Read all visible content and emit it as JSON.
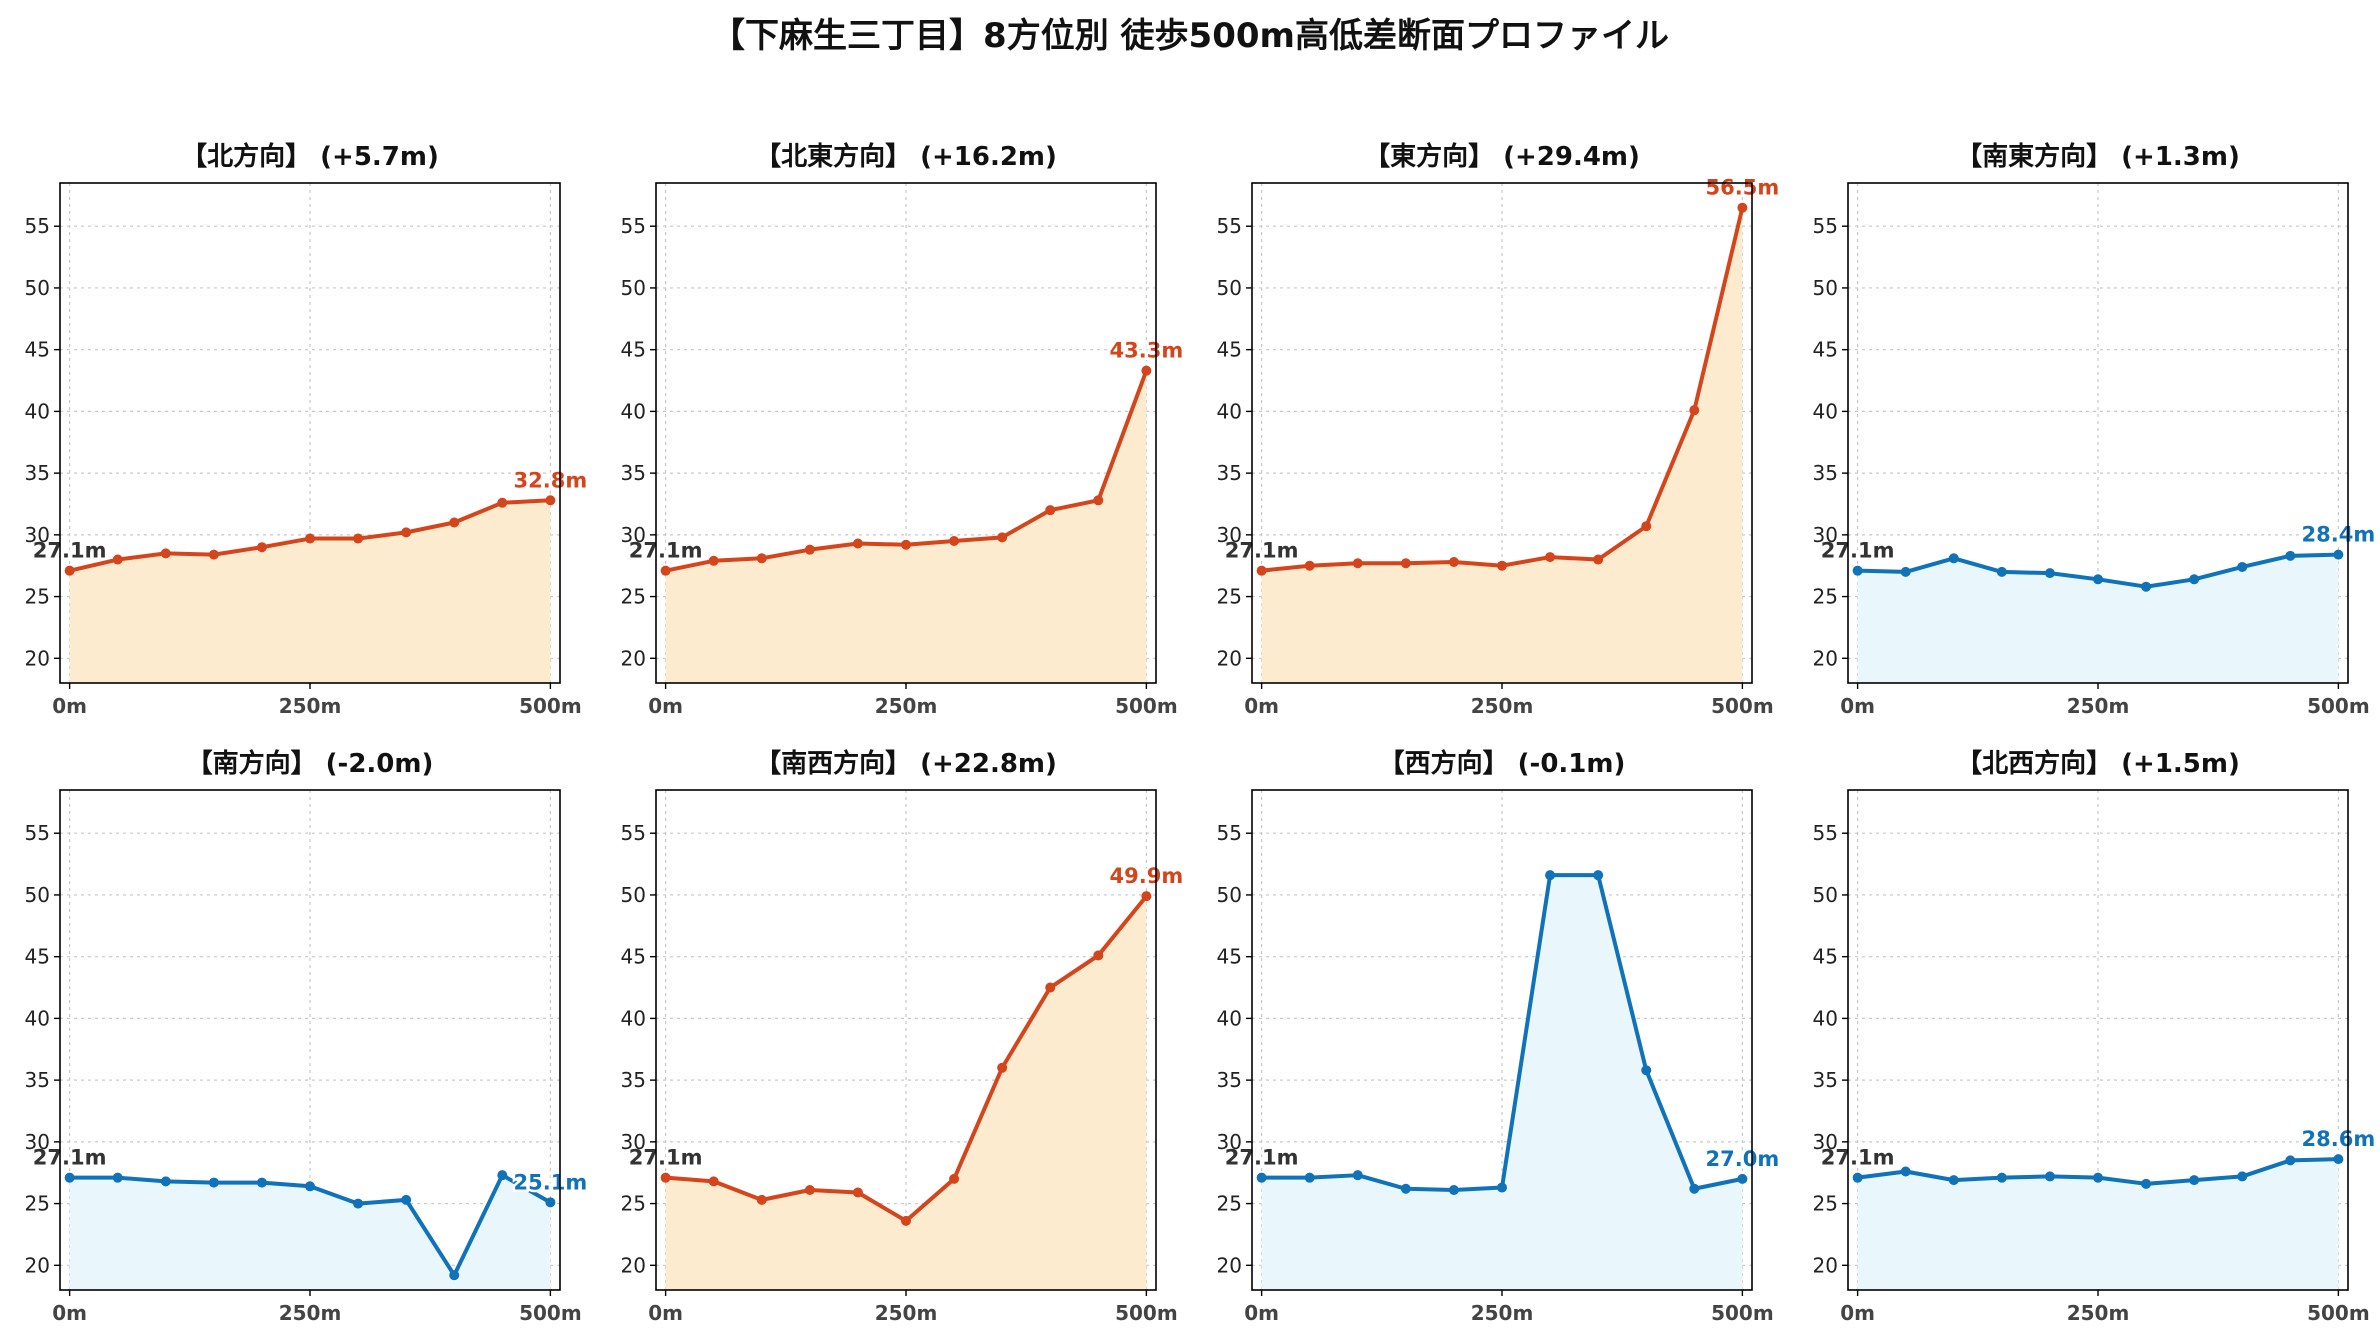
{
  "title": "【下麻生三丁目】8方位別 徒歩500m高低差断面プロファイル",
  "colors": {
    "up_line": "#d5451b",
    "up_fill": "#fdebcf",
    "down_line": "#1072b8",
    "down_fill": "#e9f6fc",
    "start_label": "#333333"
  },
  "chart_data": [
    {
      "type": "area",
      "title": "【北方向】 (+5.7m)",
      "trend": "up",
      "x": [
        0,
        50,
        100,
        150,
        200,
        250,
        300,
        350,
        400,
        450,
        500
      ],
      "y": [
        27.1,
        28.0,
        28.5,
        28.4,
        29.0,
        29.7,
        29.7,
        30.2,
        31.0,
        32.6,
        32.8
      ],
      "ylim": [
        18,
        58.5
      ],
      "xlim": [
        -10,
        510
      ],
      "xticks": [
        0,
        250,
        500
      ],
      "xticklabels": [
        "0m",
        "250m",
        "500m"
      ],
      "yticks": [
        20,
        25,
        30,
        35,
        40,
        45,
        50,
        55
      ],
      "yticklabels": [
        "20",
        "25",
        "30",
        "35",
        "40",
        "45",
        "50",
        "55"
      ],
      "start_label": "27.1m",
      "end_label": "32.8m",
      "grid": true
    },
    {
      "type": "area",
      "title": "【北東方向】 (+16.2m)",
      "trend": "up",
      "x": [
        0,
        50,
        100,
        150,
        200,
        250,
        300,
        350,
        400,
        450,
        500
      ],
      "y": [
        27.1,
        27.9,
        28.1,
        28.8,
        29.3,
        29.2,
        29.5,
        29.8,
        32.0,
        32.8,
        43.3
      ],
      "ylim": [
        18,
        58.5
      ],
      "xlim": [
        -10,
        510
      ],
      "xticks": [
        0,
        250,
        500
      ],
      "xticklabels": [
        "0m",
        "250m",
        "500m"
      ],
      "yticks": [
        20,
        25,
        30,
        35,
        40,
        45,
        50,
        55
      ],
      "yticklabels": [
        "20",
        "25",
        "30",
        "35",
        "40",
        "45",
        "50",
        "55"
      ],
      "start_label": "27.1m",
      "end_label": "43.3m",
      "grid": true
    },
    {
      "type": "area",
      "title": "【東方向】 (+29.4m)",
      "trend": "up",
      "x": [
        0,
        50,
        100,
        150,
        200,
        250,
        300,
        350,
        400,
        450,
        500
      ],
      "y": [
        27.1,
        27.5,
        27.7,
        27.7,
        27.8,
        27.5,
        28.2,
        28.0,
        30.7,
        40.1,
        56.5
      ],
      "ylim": [
        18,
        58.5
      ],
      "xlim": [
        -10,
        510
      ],
      "xticks": [
        0,
        250,
        500
      ],
      "xticklabels": [
        "0m",
        "250m",
        "500m"
      ],
      "yticks": [
        20,
        25,
        30,
        35,
        40,
        45,
        50,
        55
      ],
      "yticklabels": [
        "20",
        "25",
        "30",
        "35",
        "40",
        "45",
        "50",
        "55"
      ],
      "start_label": "27.1m",
      "end_label": "56.5m",
      "grid": true
    },
    {
      "type": "area",
      "title": "【南東方向】 (+1.3m)",
      "trend": "down",
      "x": [
        0,
        50,
        100,
        150,
        200,
        250,
        300,
        350,
        400,
        450,
        500
      ],
      "y": [
        27.1,
        27.0,
        28.1,
        27.0,
        26.9,
        26.4,
        25.8,
        26.4,
        27.4,
        28.3,
        28.4
      ],
      "ylim": [
        18,
        58.5
      ],
      "xlim": [
        -10,
        510
      ],
      "xticks": [
        0,
        250,
        500
      ],
      "xticklabels": [
        "0m",
        "250m",
        "500m"
      ],
      "yticks": [
        20,
        25,
        30,
        35,
        40,
        45,
        50,
        55
      ],
      "yticklabels": [
        "20",
        "25",
        "30",
        "35",
        "40",
        "45",
        "50",
        "55"
      ],
      "start_label": "27.1m",
      "end_label": "28.4m",
      "grid": true
    },
    {
      "type": "area",
      "title": "【南方向】 (-2.0m)",
      "trend": "down",
      "x": [
        0,
        50,
        100,
        150,
        200,
        250,
        300,
        350,
        400,
        450,
        500
      ],
      "y": [
        27.1,
        27.1,
        26.8,
        26.7,
        26.7,
        26.4,
        25.0,
        25.3,
        19.2,
        27.3,
        25.1
      ],
      "ylim": [
        18,
        58.5
      ],
      "xlim": [
        -10,
        510
      ],
      "xticks": [
        0,
        250,
        500
      ],
      "xticklabels": [
        "0m",
        "250m",
        "500m"
      ],
      "yticks": [
        20,
        25,
        30,
        35,
        40,
        45,
        50,
        55
      ],
      "yticklabels": [
        "20",
        "25",
        "30",
        "35",
        "40",
        "45",
        "50",
        "55"
      ],
      "start_label": "27.1m",
      "end_label": "25.1m",
      "grid": true
    },
    {
      "type": "area",
      "title": "【南西方向】 (+22.8m)",
      "trend": "up",
      "x": [
        0,
        50,
        100,
        150,
        200,
        250,
        300,
        350,
        400,
        450,
        500
      ],
      "y": [
        27.1,
        26.8,
        25.3,
        26.1,
        25.9,
        23.6,
        27.0,
        36.0,
        42.5,
        45.1,
        49.9
      ],
      "ylim": [
        18,
        58.5
      ],
      "xlim": [
        -10,
        510
      ],
      "xticks": [
        0,
        250,
        500
      ],
      "xticklabels": [
        "0m",
        "250m",
        "500m"
      ],
      "yticks": [
        20,
        25,
        30,
        35,
        40,
        45,
        50,
        55
      ],
      "yticklabels": [
        "20",
        "25",
        "30",
        "35",
        "40",
        "45",
        "50",
        "55"
      ],
      "start_label": "27.1m",
      "end_label": "49.9m",
      "grid": true
    },
    {
      "type": "area",
      "title": "【西方向】 (-0.1m)",
      "trend": "down",
      "x": [
        0,
        50,
        100,
        150,
        200,
        250,
        300,
        350,
        400,
        450,
        500
      ],
      "y": [
        27.1,
        27.1,
        27.3,
        26.2,
        26.1,
        26.3,
        51.6,
        51.6,
        35.8,
        26.2,
        27.0
      ],
      "ylim": [
        18,
        58.5
      ],
      "xlim": [
        -10,
        510
      ],
      "xticks": [
        0,
        250,
        500
      ],
      "xticklabels": [
        "0m",
        "250m",
        "500m"
      ],
      "yticks": [
        20,
        25,
        30,
        35,
        40,
        45,
        50,
        55
      ],
      "yticklabels": [
        "20",
        "25",
        "30",
        "35",
        "40",
        "45",
        "50",
        "55"
      ],
      "start_label": "27.1m",
      "end_label": "27.0m",
      "grid": true
    },
    {
      "type": "area",
      "title": "【北西方向】 (+1.5m)",
      "trend": "down",
      "x": [
        0,
        50,
        100,
        150,
        200,
        250,
        300,
        350,
        400,
        450,
        500
      ],
      "y": [
        27.1,
        27.6,
        26.9,
        27.1,
        27.2,
        27.1,
        26.6,
        26.9,
        27.2,
        28.5,
        28.6
      ],
      "ylim": [
        18,
        58.5
      ],
      "xlim": [
        -10,
        510
      ],
      "xticks": [
        0,
        250,
        500
      ],
      "xticklabels": [
        "0m",
        "250m",
        "500m"
      ],
      "yticks": [
        20,
        25,
        30,
        35,
        40,
        45,
        50,
        55
      ],
      "yticklabels": [
        "20",
        "25",
        "30",
        "35",
        "40",
        "45",
        "50",
        "55"
      ],
      "start_label": "27.1m",
      "end_label": "28.6m",
      "grid": true
    }
  ]
}
